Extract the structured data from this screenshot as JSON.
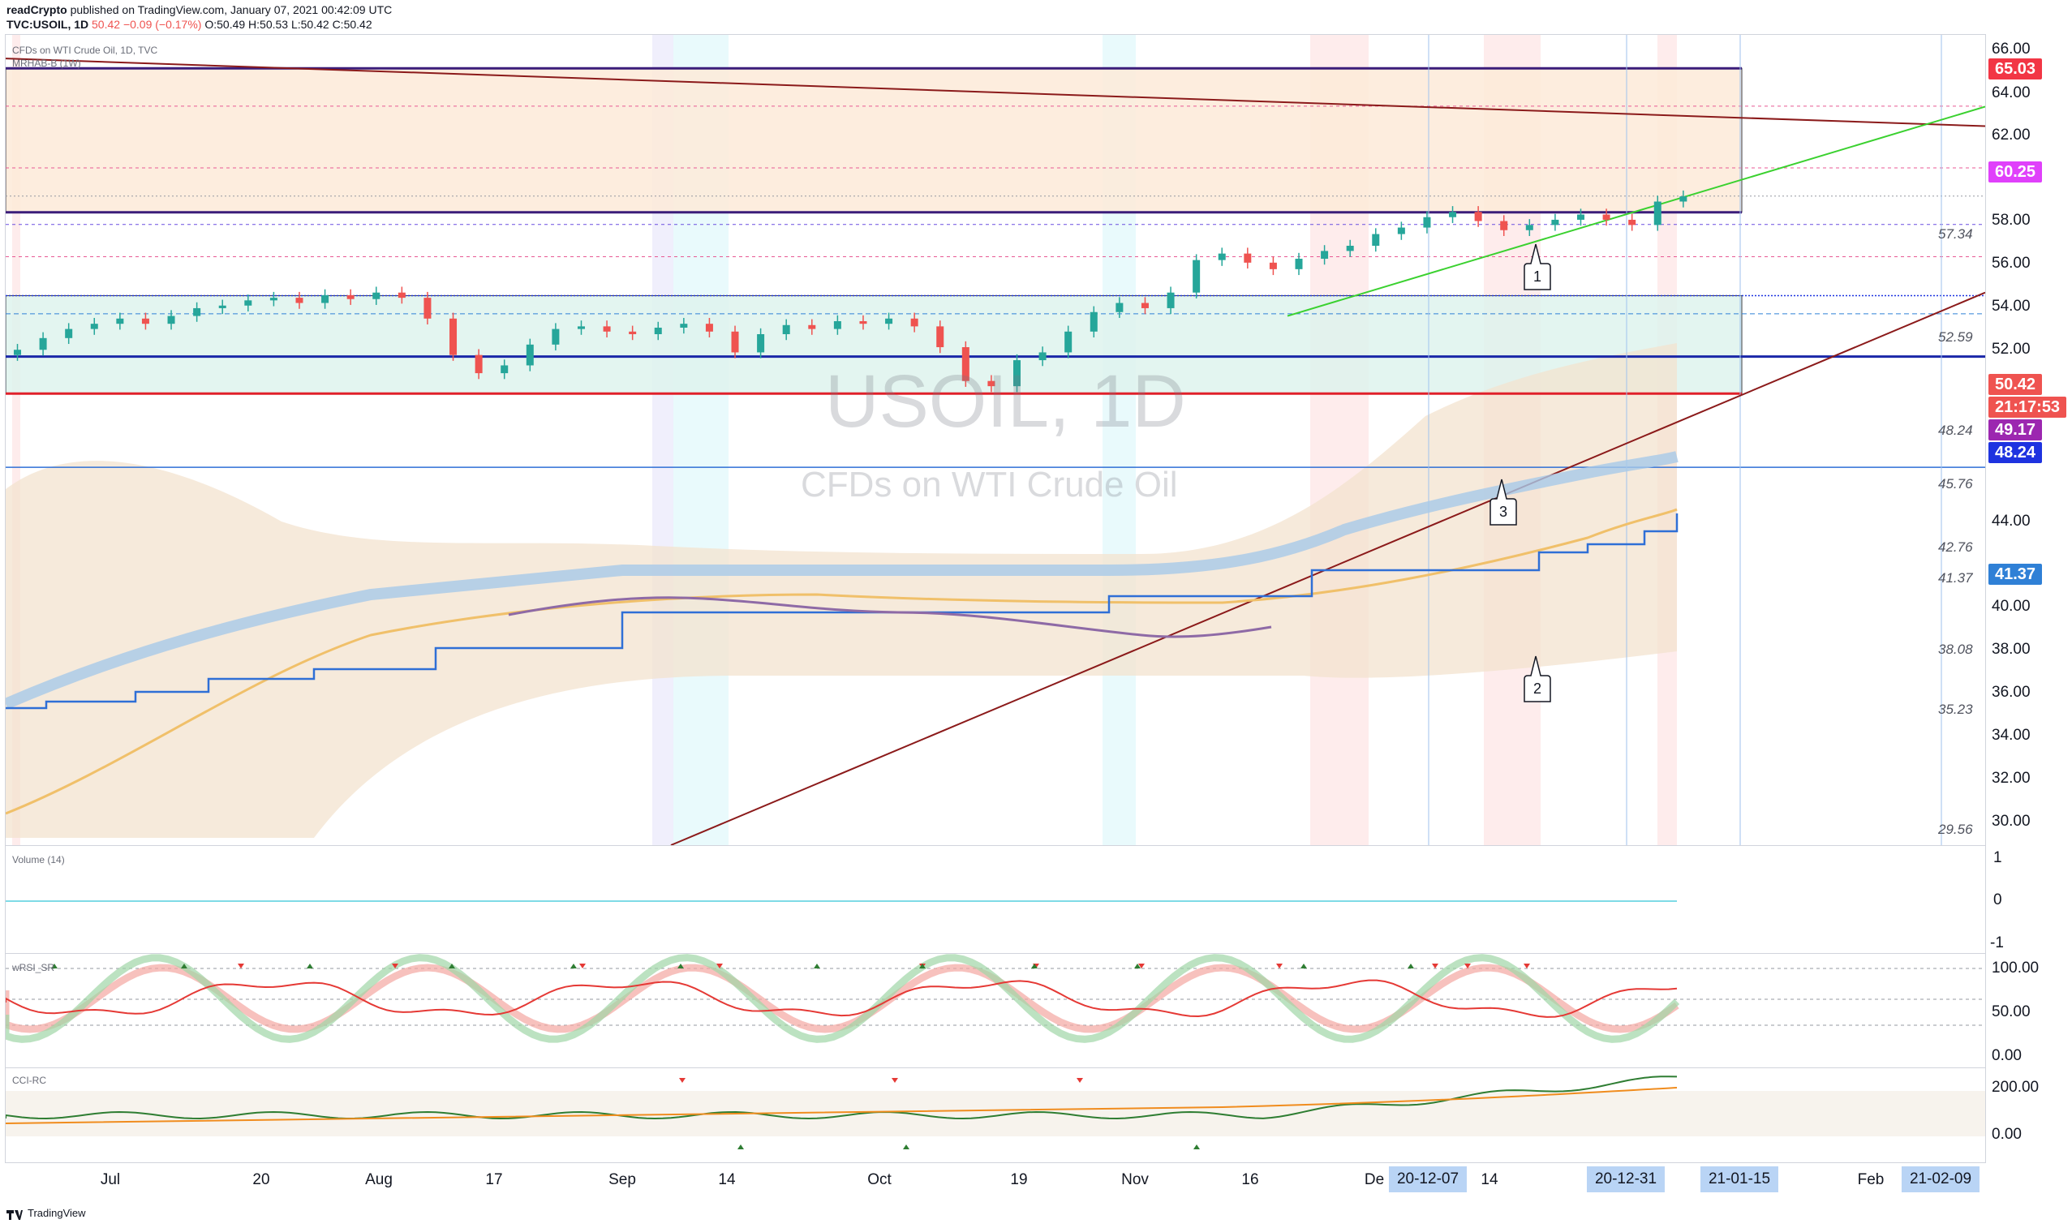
{
  "header": {
    "author": "readCrypto",
    "published_text": "published on TradingView.com, January 07, 2021 00:42:09 UTC",
    "symbol_line": "TVC:USOIL, 1D",
    "change": "50.42 −0.09 (−0.17%)",
    "ohlc": "O:50.49 H:50.53 L:50.42 C:50.42"
  },
  "main_pane": {
    "title": "CFDs on WTI Crude Oil, 1D, TVC",
    "indicator": "MRHAB-B (1W)",
    "watermark_symbol": "USOIL, 1D",
    "watermark_name": "CFDs on WTI Crude Oil",
    "price_ticks": [
      "66.00",
      "64.00",
      "62.00",
      "58.00",
      "56.00",
      "54.00",
      "52.00",
      "44.00",
      "40.00",
      "38.00",
      "36.00",
      "34.00",
      "32.00",
      "30.00"
    ],
    "badges": [
      {
        "value": "65.03",
        "color": "#f23645"
      },
      {
        "value": "60.25",
        "color": "#e040fb"
      },
      {
        "value": "50.42",
        "color": "#ef5350"
      },
      {
        "value": "21:17:53",
        "color": "#ef5350"
      },
      {
        "value": "49.17",
        "color": "#9c27b0"
      },
      {
        "value": "48.24",
        "color": "#1e33e0"
      },
      {
        "value": "41.37",
        "color": "#2f80d6"
      }
    ],
    "level_labels": [
      "57.34",
      "52.59",
      "48.24",
      "45.76",
      "42.76",
      "41.37",
      "38.08",
      "35.23",
      "29.56"
    ],
    "annotations": [
      "1",
      "2",
      "3"
    ]
  },
  "volume_pane": {
    "title": "Volume (14)",
    "ticks": [
      "1",
      "0",
      "-1"
    ]
  },
  "rsi_pane": {
    "title": "wRSI_SR",
    "ticks": [
      "100.00",
      "50.00",
      "0.00"
    ]
  },
  "cci_pane": {
    "title": "CCI-RC",
    "ticks": [
      "200.00",
      "0.00"
    ]
  },
  "xaxis": {
    "ticks": [
      "Jul",
      "20",
      "Aug",
      "17",
      "Sep",
      "14",
      "Oct",
      "19",
      "Nov",
      "16",
      "De",
      "14",
      "Feb"
    ],
    "badges": [
      "20-12-07",
      "20-12-31",
      "21-01-15",
      "21-02-09"
    ]
  },
  "footer": {
    "brand": "TradingView"
  },
  "colors": {
    "up": "#26a69a",
    "down": "#ef5350",
    "box_orange": "#fde9d4",
    "box_green": "#dff3ea"
  }
}
